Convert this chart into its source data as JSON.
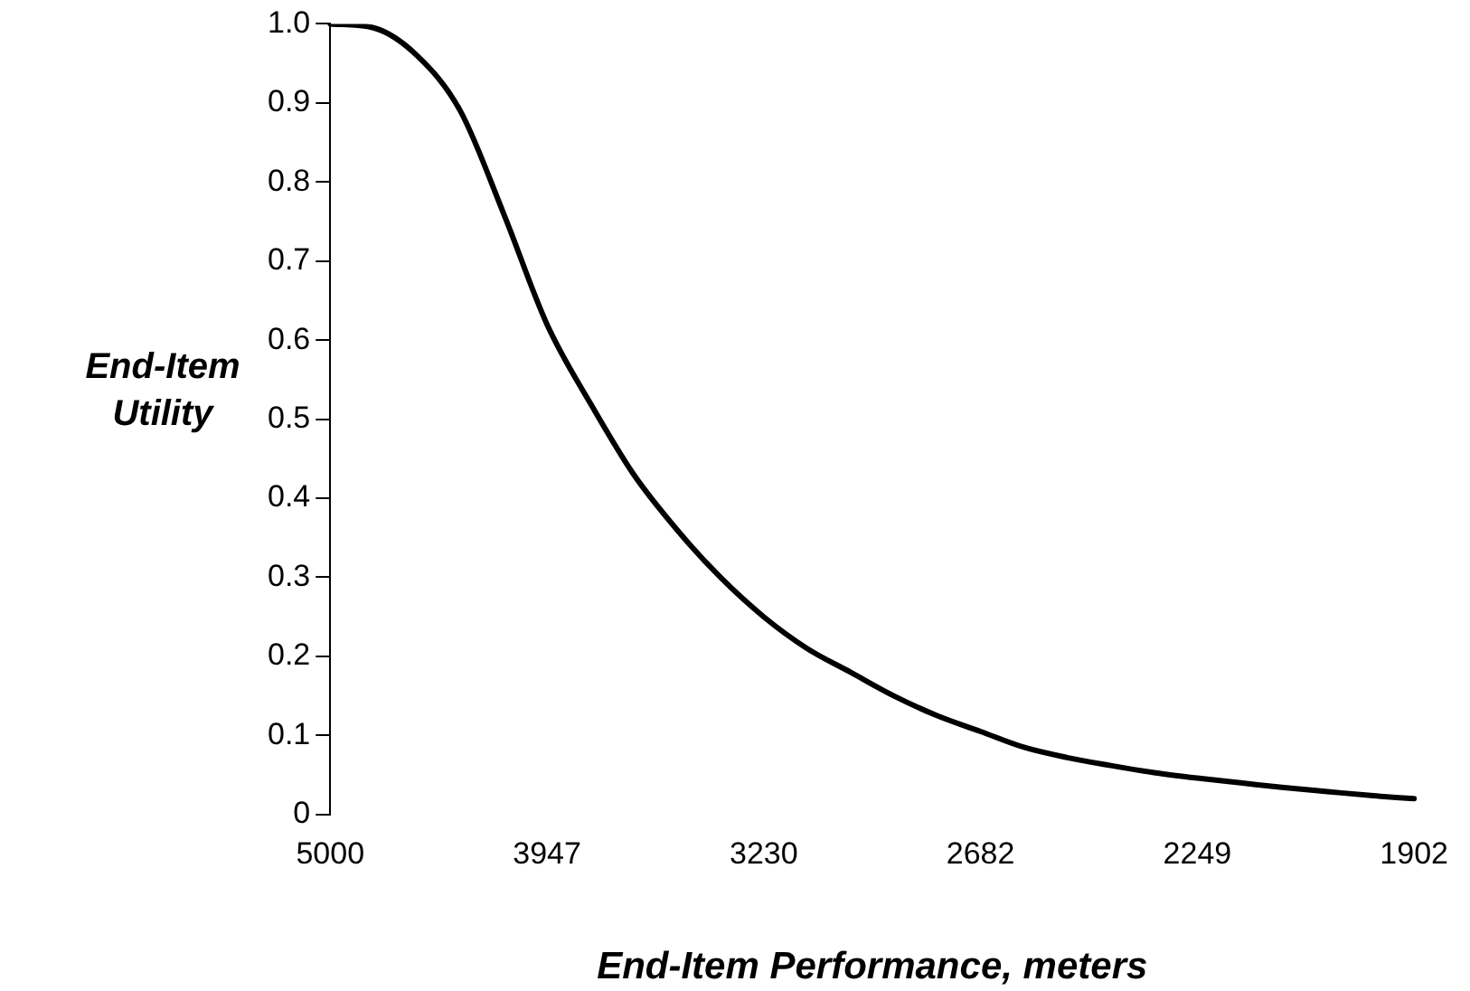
{
  "chart_data": {
    "type": "line",
    "xlabel": "End-Item Performance, meters",
    "ylabel": "End-Item Utility",
    "categories": [
      "5000",
      null,
      null,
      null,
      null,
      "3947",
      null,
      null,
      null,
      null,
      "3230",
      null,
      null,
      null,
      null,
      "2682",
      null,
      null,
      null,
      null,
      "2249",
      null,
      null,
      null,
      null,
      "1902"
    ],
    "series": [
      {
        "color": "#000000",
        "values": [
          1.0,
          0.995,
          0.96,
          0.89,
          0.76,
          0.62,
          0.52,
          0.43,
          0.36,
          0.3,
          0.25,
          0.21,
          0.18,
          0.15,
          0.125,
          0.105,
          0.085,
          0.072,
          0.062,
          0.053,
          0.046,
          0.04,
          0.034,
          0.029,
          0.024,
          0.02
        ]
      }
    ],
    "ylim": [
      0,
      1
    ],
    "yticks": [
      0,
      0.1,
      0.2,
      0.3,
      0.4,
      0.5,
      0.6,
      0.7,
      0.8,
      0.9,
      {
        "value": 1,
        "label": "1.0"
      }
    ],
    "grid": false,
    "legend": false,
    "marker": "none",
    "line_style": "solid"
  }
}
